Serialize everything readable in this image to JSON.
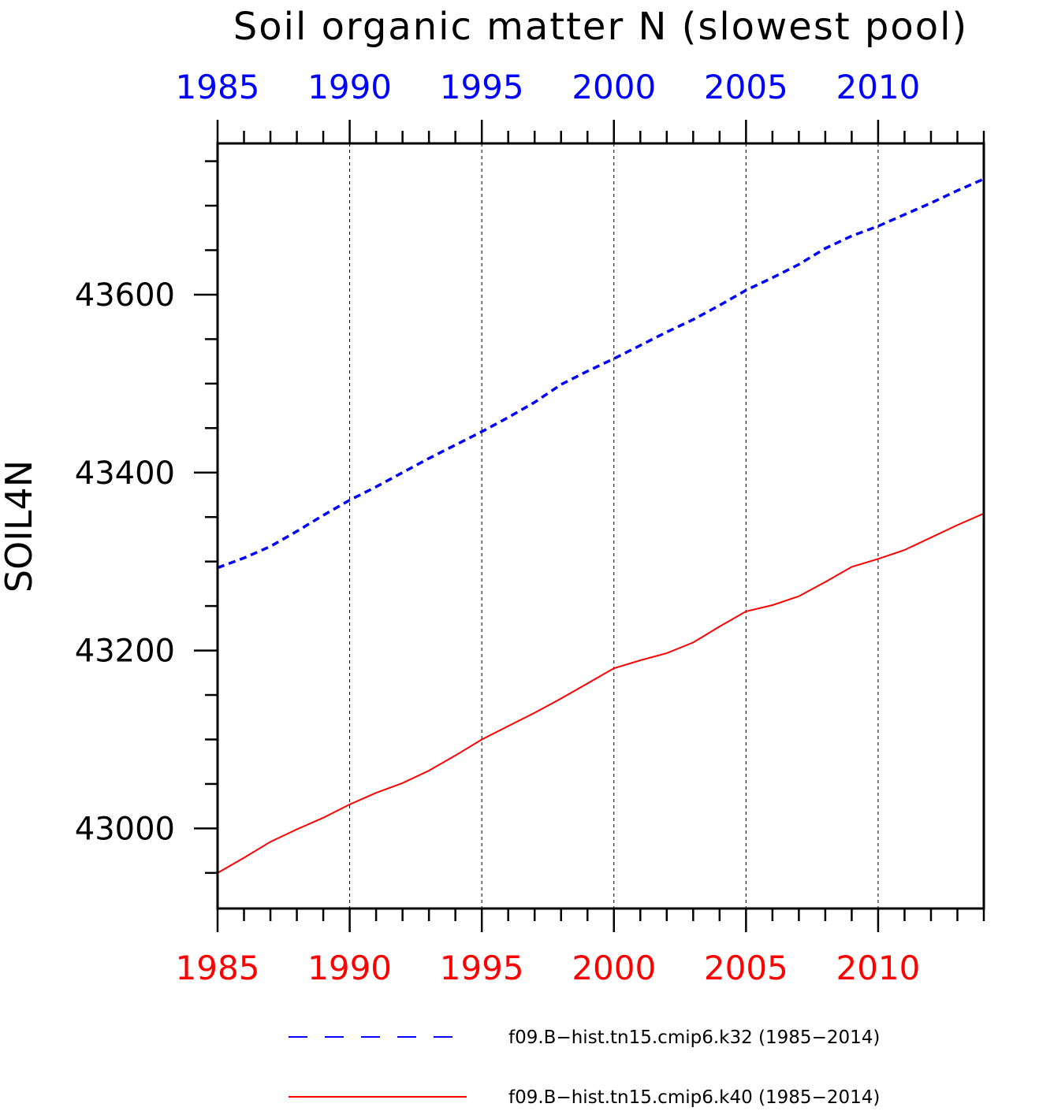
{
  "chart_data": {
    "type": "line",
    "title": "Soil organic matter N (slowest pool)",
    "ylabel": "SOIL4N",
    "xlabel": "",
    "xlim": [
      1985,
      2014
    ],
    "ylim": [
      42910,
      43770
    ],
    "x_ticks": [
      1985,
      1990,
      1995,
      2000,
      2005,
      2010
    ],
    "x_tick_labels": [
      "1985",
      "1990",
      "1995",
      "2000",
      "2005",
      "2010"
    ],
    "y_ticks": [
      43000,
      43200,
      43400,
      43600
    ],
    "y_tick_labels": [
      "43000",
      "43200",
      "43400",
      "43600"
    ],
    "grid": "vertical-dashed",
    "x": [
      1985,
      1986,
      1987,
      1988,
      1989,
      1990,
      1991,
      1992,
      1993,
      1994,
      1995,
      1996,
      1997,
      1998,
      1999,
      2000,
      2001,
      2002,
      2003,
      2004,
      2005,
      2006,
      2007,
      2008,
      2009,
      2010,
      2011,
      2012,
      2013,
      2014
    ],
    "series": [
      {
        "name": "f09.B−hist.tn15.cmip6.k32 (1985−2014)",
        "color": "#0000ff",
        "style": "dashed",
        "values": [
          43293,
          43304,
          43317,
          43334,
          43352,
          43369,
          43384,
          43400,
          43416,
          43431,
          43446,
          43462,
          43479,
          43499,
          43514,
          43528,
          43543,
          43558,
          43572,
          43588,
          43605,
          43619,
          43634,
          43652,
          43666,
          43677,
          43690,
          43703,
          43717,
          43730
        ]
      },
      {
        "name": "f09.B−hist.tn15.cmip6.k40 (1985−2014)",
        "color": "#ff0000",
        "style": "solid",
        "values": [
          42950,
          42967,
          42985,
          42999,
          43012,
          43027,
          43040,
          43051,
          43065,
          43082,
          43100,
          43115,
          43130,
          43146,
          43163,
          43180,
          43189,
          43197,
          43209,
          43227,
          43244,
          43251,
          43261,
          43277,
          43294,
          43303,
          43313,
          43327,
          43341,
          43354
        ]
      }
    ],
    "legend_position": "bottom"
  }
}
